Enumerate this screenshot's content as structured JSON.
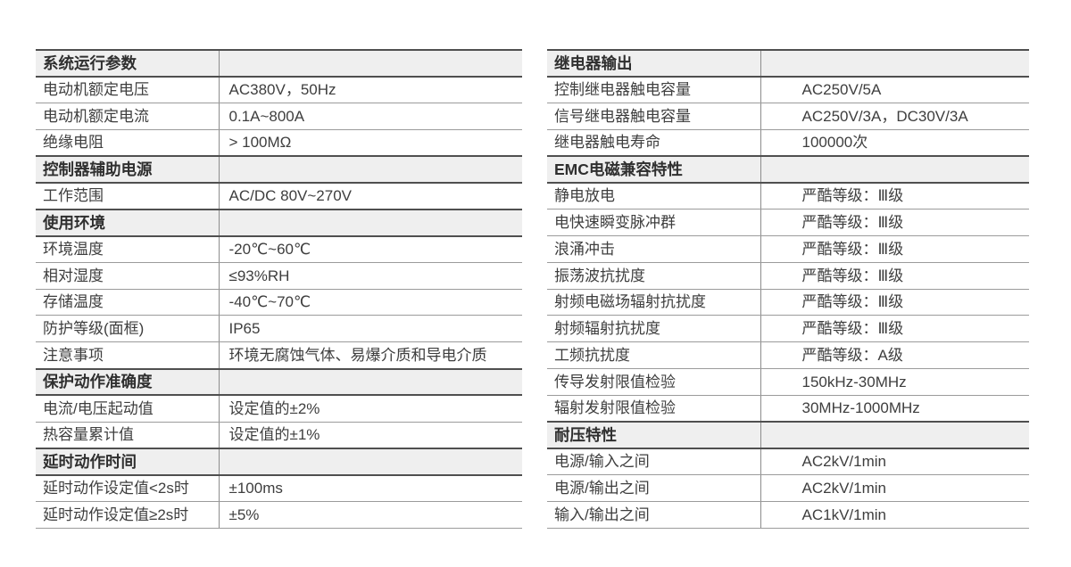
{
  "colors": {
    "text": "#3e3e3e",
    "section_text": "#2f2f2f",
    "section_bg": "#efefef",
    "border_dark": "#4f4f4f",
    "border_light": "#9b9b9b",
    "divider": "#8c8c8c",
    "page_bg": "#ffffff"
  },
  "tables": {
    "left": {
      "rows": [
        {
          "type": "section",
          "label": "系统运行参数",
          "value": ""
        },
        {
          "type": "item",
          "label": "电动机额定电压",
          "value": "AC380V，50Hz"
        },
        {
          "type": "item",
          "label": "电动机额定电流",
          "value": "0.1A~800A"
        },
        {
          "type": "item",
          "label": "绝缘电阻",
          "value": "> 100MΩ"
        },
        {
          "type": "section",
          "label": "控制器辅助电源",
          "value": ""
        },
        {
          "type": "item",
          "label": "工作范围",
          "value": "AC/DC 80V~270V"
        },
        {
          "type": "section",
          "label": "使用环境",
          "value": ""
        },
        {
          "type": "item",
          "label": "环境温度",
          "value": "-20℃~60℃"
        },
        {
          "type": "item",
          "label": "相对湿度",
          "value": "≤93%RH"
        },
        {
          "type": "item",
          "label": "存储温度",
          "value": "-40℃~70℃"
        },
        {
          "type": "item",
          "label": "防护等级(面框)",
          "value": "IP65"
        },
        {
          "type": "item",
          "label": "注意事项",
          "value": "环境无腐蚀气体、易爆介质和导电介质"
        },
        {
          "type": "section",
          "label": "保护动作准确度",
          "value": ""
        },
        {
          "type": "item",
          "label": "电流/电压起动值",
          "value": "设定值的±2%"
        },
        {
          "type": "item",
          "label": "热容量累计值",
          "value": "设定值的±1%"
        },
        {
          "type": "section",
          "label": "延时动作时间",
          "value": ""
        },
        {
          "type": "item",
          "label": "延时动作设定值<2s时",
          "value": "±100ms"
        },
        {
          "type": "item",
          "label": "延时动作设定值≥2s时",
          "value": "±5%"
        }
      ]
    },
    "right": {
      "rows": [
        {
          "type": "section",
          "label": "继电器输出",
          "value": ""
        },
        {
          "type": "item",
          "label": "控制继电器触电容量",
          "value": "AC250V/5A"
        },
        {
          "type": "item",
          "label": "信号继电器触电容量",
          "value": "AC250V/3A，DC30V/3A"
        },
        {
          "type": "item",
          "label": "继电器触电寿命",
          "value": "100000次"
        },
        {
          "type": "section",
          "label": "EMC电磁兼容特性",
          "value": ""
        },
        {
          "type": "item",
          "label": "静电放电",
          "value": "严酷等级：Ⅲ级"
        },
        {
          "type": "item",
          "label": "电快速瞬变脉冲群",
          "value": "严酷等级：Ⅲ级"
        },
        {
          "type": "item",
          "label": "浪涌冲击",
          "value": "严酷等级：Ⅲ级"
        },
        {
          "type": "item",
          "label": "振荡波抗扰度",
          "value": "严酷等级：Ⅲ级"
        },
        {
          "type": "item",
          "label": "射频电磁场辐射抗扰度",
          "value": "严酷等级：Ⅲ级"
        },
        {
          "type": "item",
          "label": "射频辐射抗扰度",
          "value": "严酷等级：Ⅲ级"
        },
        {
          "type": "item",
          "label": "工频抗扰度",
          "value": "严酷等级：A级"
        },
        {
          "type": "item",
          "label": "传导发射限值检验",
          "value": "150kHz-30MHz"
        },
        {
          "type": "item",
          "label": "辐射发射限值检验",
          "value": "30MHz-1000MHz"
        },
        {
          "type": "section",
          "label": "耐压特性",
          "value": ""
        },
        {
          "type": "item",
          "label": "电源/输入之间",
          "value": "AC2kV/1min"
        },
        {
          "type": "item",
          "label": "电源/输出之间",
          "value": "AC2kV/1min"
        },
        {
          "type": "item",
          "label": "输入/输出之间",
          "value": "AC1kV/1min"
        }
      ]
    }
  }
}
